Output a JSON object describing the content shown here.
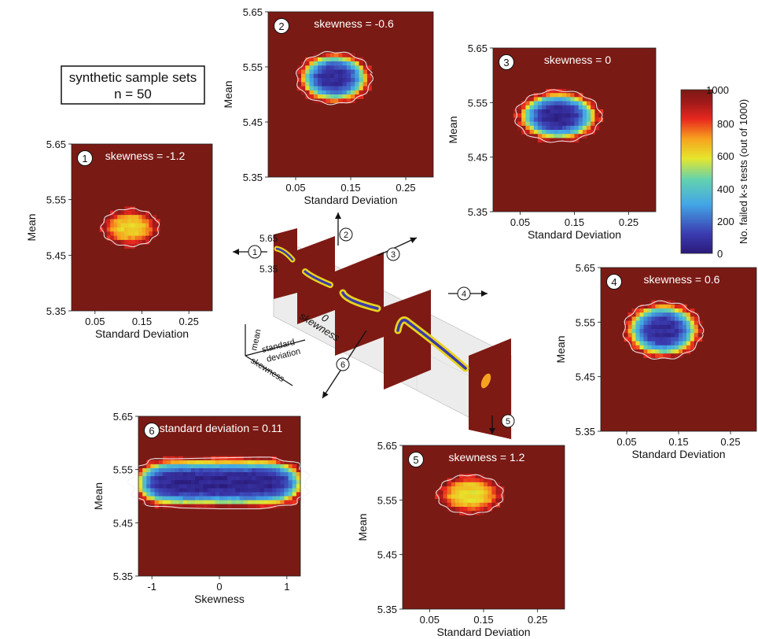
{
  "panel_text": {
    "box_line1": "synthetic sample sets",
    "box_line2": "n = 50"
  },
  "colorbar": {
    "label": "No. failed k-s tests (out of 1000)",
    "ticks": [
      "0",
      "200",
      "400",
      "600",
      "800",
      "1000"
    ]
  },
  "axes3d": {
    "mean": "mean",
    "standard": "standard",
    "deviation": "deviation",
    "skewness": "skewness",
    "zero": "0",
    "y_ticks": [
      "5.65",
      "5.35"
    ]
  },
  "arrows": [
    "1",
    "2",
    "3",
    "4",
    "5",
    "6"
  ],
  "chart_data": [
    {
      "id": "1",
      "type": "heatmap",
      "title": "skewness = -1.2",
      "xlabel": "Standard Deviation",
      "ylabel": "Mean",
      "x_ticks": [
        "0.05",
        "0.15",
        "0.25"
      ],
      "y_ticks": [
        "5.35",
        "5.45",
        "5.55",
        "5.65"
      ],
      "xlim": [
        0.0,
        0.3
      ],
      "ylim": [
        5.35,
        5.65
      ],
      "color_range": [
        0,
        1000
      ],
      "blob": {
        "cx": 0.125,
        "cy": 5.5,
        "sx": 0.058,
        "sy": 0.032,
        "rot": 28,
        "min": 620
      }
    },
    {
      "id": "2",
      "type": "heatmap",
      "title": "skewness = -0.6",
      "xlabel": "Standard Deviation",
      "ylabel": "Mean",
      "x_ticks": [
        "0.05",
        "0.15",
        "0.25"
      ],
      "y_ticks": [
        "5.35",
        "5.45",
        "5.55",
        "5.65"
      ],
      "xlim": [
        0.0,
        0.3
      ],
      "ylim": [
        5.35,
        5.65
      ],
      "color_range": [
        0,
        1000
      ],
      "blob": {
        "cx": 0.12,
        "cy": 5.53,
        "sx": 0.065,
        "sy": 0.045,
        "rot": 10,
        "min": 60
      }
    },
    {
      "id": "3",
      "type": "heatmap",
      "title": "skewness = 0",
      "xlabel": "Standard Deviation",
      "ylabel": "Mean",
      "x_ticks": [
        "0.05",
        "0.15",
        "0.25"
      ],
      "y_ticks": [
        "5.35",
        "5.45",
        "5.55",
        "5.65"
      ],
      "xlim": [
        0.0,
        0.3
      ],
      "ylim": [
        5.35,
        5.65
      ],
      "color_range": [
        0,
        1000
      ],
      "blob": {
        "cx": 0.12,
        "cy": 5.525,
        "sx": 0.075,
        "sy": 0.045,
        "rot": 0,
        "min": 40
      }
    },
    {
      "id": "4",
      "type": "heatmap",
      "title": "skewness = 0.6",
      "xlabel": "Standard Deviation",
      "ylabel": "Mean",
      "x_ticks": [
        "0.05",
        "0.15",
        "0.25"
      ],
      "y_ticks": [
        "5.35",
        "5.45",
        "5.55",
        "5.65"
      ],
      "xlim": [
        0.0,
        0.3
      ],
      "ylim": [
        5.35,
        5.65
      ],
      "color_range": [
        0,
        1000
      ],
      "blob": {
        "cx": 0.12,
        "cy": 5.535,
        "sx": 0.072,
        "sy": 0.05,
        "rot": -8,
        "min": 60
      }
    },
    {
      "id": "5",
      "type": "heatmap",
      "title": "skewness = 1.2",
      "xlabel": "Standard Deviation",
      "ylabel": "Mean",
      "x_ticks": [
        "0.05",
        "0.15",
        "0.25"
      ],
      "y_ticks": [
        "5.35",
        "5.45",
        "5.55",
        "5.65"
      ],
      "xlim": [
        0.0,
        0.3
      ],
      "ylim": [
        5.35,
        5.65
      ],
      "color_range": [
        0,
        1000
      ],
      "blob": {
        "cx": 0.125,
        "cy": 5.56,
        "sx": 0.058,
        "sy": 0.034,
        "rot": -30,
        "min": 600
      }
    },
    {
      "id": "6",
      "type": "heatmap",
      "title": "standard deviation = 0.11",
      "xlabel": "Skewness",
      "ylabel": "Mean",
      "x_ticks": [
        "-1",
        "0",
        "1"
      ],
      "y_ticks": [
        "5.35",
        "5.45",
        "5.55",
        "5.65"
      ],
      "xlim": [
        -1.2,
        1.2
      ],
      "ylim": [
        5.35,
        5.65
      ],
      "color_range": [
        0,
        1000
      ],
      "blob": {
        "cx": 0.0,
        "cy": 5.525,
        "sx": 1.25,
        "sy": 0.045,
        "rot": 0,
        "min": 40,
        "flat": true
      }
    }
  ]
}
